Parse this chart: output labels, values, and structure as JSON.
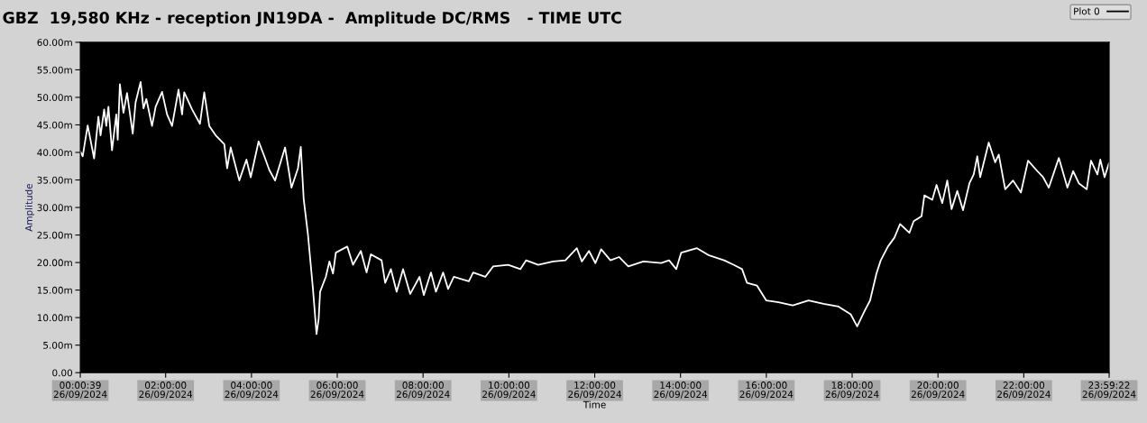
{
  "chart_data": {
    "type": "line",
    "title": "GBZ  19,580 KHz - reception JN19DA -  Amplitude DC/RMS   - TIME UTC",
    "xlabel": "Time",
    "ylabel": "Amplitude",
    "legend": "top right",
    "grid": false,
    "marker": "none",
    "line_style": "solid",
    "xlim": [
      "2024-09-26T00:00:39",
      "2024-09-26T23:59:22"
    ],
    "ylim": [
      0,
      60
    ],
    "xticks": [
      {
        "value": "2024-09-26T00:00:39",
        "label": "00:00:39\n26/09/2024"
      },
      {
        "value": "2024-09-26T02:00",
        "label": "02:00:00\n26/09/2024"
      },
      {
        "value": "2024-09-26T04:00",
        "label": "04:00:00\n26/09/2024"
      },
      {
        "value": "2024-09-26T06:00",
        "label": "06:00:00\n26/09/2024"
      },
      {
        "value": "2024-09-26T08:00",
        "label": "08:00:00\n26/09/2024"
      },
      {
        "value": "2024-09-26T10:00",
        "label": "10:00:00\n26/09/2024"
      },
      {
        "value": "2024-09-26T12:00",
        "label": "12:00:00\n26/09/2024"
      },
      {
        "value": "2024-09-26T14:00",
        "label": "14:00:00\n26/09/2024"
      },
      {
        "value": "2024-09-26T16:00",
        "label": "16:00:00\n26/09/2024"
      },
      {
        "value": "2024-09-26T18:00",
        "label": "18:00:00\n26/09/2024"
      },
      {
        "value": "2024-09-26T20:00",
        "label": "20:00:00\n26/09/2024"
      },
      {
        "value": "2024-09-26T22:00",
        "label": "22:00:00\n26/09/2024"
      },
      {
        "value": "2024-09-26T23:59:22",
        "label": "23:59:22\n26/09/2024"
      }
    ],
    "yticks": [
      {
        "value": 0,
        "label": "0.00"
      },
      {
        "value": 5,
        "label": "5.00m"
      },
      {
        "value": 10,
        "label": "10.00m"
      },
      {
        "value": 15,
        "label": "15.00m"
      },
      {
        "value": 20,
        "label": "20.00m"
      },
      {
        "value": 25,
        "label": "25.00m"
      },
      {
        "value": 30,
        "label": "30.00m"
      },
      {
        "value": 35,
        "label": "35.00m"
      },
      {
        "value": 40,
        "label": "40.00m"
      },
      {
        "value": 45,
        "label": "45.00m"
      },
      {
        "value": 50,
        "label": "50.00m"
      },
      {
        "value": 55,
        "label": "55.00m"
      },
      {
        "value": 60,
        "label": "60.00m"
      }
    ],
    "series": [
      {
        "name": "Plot 0",
        "color": "#ffffff",
        "x": [
          "2024-09-26T00:01",
          "2024-09-26T00:04",
          "2024-09-26T00:11",
          "2024-09-26T00:20",
          "2024-09-26T00:26",
          "2024-09-26T00:29",
          "2024-09-26T00:34",
          "2024-09-26T00:37",
          "2024-09-26T00:40",
          "2024-09-26T00:45",
          "2024-09-26T00:51",
          "2024-09-26T00:53",
          "2024-09-26T00:56",
          "2024-09-26T01:01",
          "2024-09-26T01:06",
          "2024-09-26T01:14",
          "2024-09-26T01:18",
          "2024-09-26T01:25",
          "2024-09-26T01:29",
          "2024-09-26T01:33",
          "2024-09-26T01:41",
          "2024-09-26T01:46",
          "2024-09-26T01:55",
          "2024-09-26T02:02",
          "2024-09-26T02:09",
          "2024-09-26T02:18",
          "2024-09-26T02:23",
          "2024-09-26T02:26",
          "2024-09-26T02:37",
          "2024-09-26T02:48",
          "2024-09-26T02:54",
          "2024-09-26T03:01",
          "2024-09-26T03:10",
          "2024-09-26T03:22",
          "2024-09-26T03:26",
          "2024-09-26T03:31",
          "2024-09-26T03:43",
          "2024-09-26T03:53",
          "2024-09-26T03:59",
          "2024-09-26T04:10",
          "2024-09-26T04:18",
          "2024-09-26T04:25",
          "2024-09-26T04:33",
          "2024-09-26T04:47",
          "2024-09-26T04:56",
          "2024-09-26T05:05",
          "2024-09-26T05:09",
          "2024-09-26T05:13",
          "2024-09-26T05:19",
          "2024-09-26T05:26",
          "2024-09-26T05:31",
          "2024-09-26T05:34",
          "2024-09-26T05:36",
          "2024-09-26T05:44",
          "2024-09-26T05:49",
          "2024-09-26T05:54",
          "2024-09-26T05:58",
          "2024-09-26T06:14",
          "2024-09-26T06:22",
          "2024-09-26T06:33",
          "2024-09-26T06:41",
          "2024-09-26T06:47",
          "2024-09-26T07:02",
          "2024-09-26T07:07",
          "2024-09-26T07:15",
          "2024-09-26T07:23",
          "2024-09-26T07:32",
          "2024-09-26T07:42",
          "2024-09-26T07:55",
          "2024-09-26T08:01",
          "2024-09-26T08:11",
          "2024-09-26T08:18",
          "2024-09-26T08:28",
          "2024-09-26T08:35",
          "2024-09-26T08:43",
          "2024-09-26T09:04",
          "2024-09-26T09:10",
          "2024-09-26T09:27",
          "2024-09-26T09:38",
          "2024-09-26T09:59",
          "2024-09-26T10:16",
          "2024-09-26T10:24",
          "2024-09-26T10:41",
          "2024-09-26T11:02",
          "2024-09-26T11:19",
          "2024-09-26T11:35",
          "2024-09-26T11:42",
          "2024-09-26T11:52",
          "2024-09-26T12:01",
          "2024-09-26T12:09",
          "2024-09-26T12:22",
          "2024-09-26T12:34",
          "2024-09-26T12:47",
          "2024-09-26T13:08",
          "2024-09-26T13:33",
          "2024-09-26T13:44",
          "2024-09-26T13:54",
          "2024-09-26T14:01",
          "2024-09-26T14:23",
          "2024-09-26T14:40",
          "2024-09-26T15:01",
          "2024-09-26T15:14",
          "2024-09-26T15:26",
          "2024-09-26T15:33",
          "2024-09-26T15:47",
          "2024-09-26T16:00",
          "2024-09-26T16:17",
          "2024-09-26T16:37",
          "2024-09-26T16:59",
          "2024-09-26T17:20",
          "2024-09-26T17:41",
          "2024-09-26T17:58",
          "2024-09-26T18:07",
          "2024-09-26T18:17",
          "2024-09-26T18:25",
          "2024-09-26T18:34",
          "2024-09-26T18:40",
          "2024-09-26T18:50",
          "2024-09-26T18:59",
          "2024-09-26T19:07",
          "2024-09-26T19:20",
          "2024-09-26T19:26",
          "2024-09-26T19:37",
          "2024-09-26T19:41",
          "2024-09-26T19:52",
          "2024-09-26T19:58",
          "2024-09-26T20:06",
          "2024-09-26T20:13",
          "2024-09-26T20:19",
          "2024-09-26T20:27",
          "2024-09-26T20:35",
          "2024-09-26T20:44",
          "2024-09-26T20:50",
          "2024-09-26T20:55",
          "2024-09-26T20:59",
          "2024-09-26T21:11",
          "2024-09-26T21:20",
          "2024-09-26T21:25",
          "2024-09-26T21:34",
          "2024-09-26T21:45",
          "2024-09-26T21:56",
          "2024-09-26T22:06",
          "2024-09-26T22:19",
          "2024-09-26T22:27",
          "2024-09-26T22:35",
          "2024-09-26T22:49",
          "2024-09-26T23:01",
          "2024-09-26T23:09",
          "2024-09-26T23:17",
          "2024-09-26T23:28",
          "2024-09-26T23:34",
          "2024-09-26T23:43",
          "2024-09-26T23:47",
          "2024-09-26T23:53",
          "2024-09-26T23:59"
        ],
        "values": [
          40.1,
          39.3,
          44.9,
          38.9,
          46.5,
          43.1,
          47.8,
          44.8,
          48.3,
          40.4,
          46.9,
          42.3,
          52.4,
          47.2,
          50.8,
          43.4,
          49.1,
          52.8,
          48.0,
          49.7,
          44.8,
          48.3,
          51.0,
          46.9,
          44.8,
          51.4,
          46.9,
          50.9,
          47.8,
          45.2,
          50.9,
          44.8,
          43.1,
          41.5,
          37.1,
          40.9,
          34.9,
          38.7,
          35.5,
          42.0,
          39.3,
          36.8,
          34.9,
          40.9,
          33.6,
          37.1,
          41.0,
          31.6,
          25.1,
          15.2,
          7.0,
          9.8,
          14.7,
          17.4,
          20.2,
          18.0,
          21.8,
          22.9,
          19.6,
          22.1,
          18.2,
          21.5,
          20.4,
          16.3,
          18.8,
          14.7,
          18.8,
          14.3,
          17.4,
          14.1,
          18.2,
          14.7,
          18.2,
          15.2,
          17.4,
          16.6,
          18.2,
          17.4,
          19.3,
          19.6,
          18.8,
          20.4,
          19.6,
          20.2,
          20.4,
          22.6,
          20.2,
          22.1,
          19.9,
          22.4,
          20.4,
          21.0,
          19.3,
          20.2,
          19.9,
          20.4,
          18.8,
          21.8,
          22.6,
          21.3,
          20.4,
          19.6,
          18.8,
          16.3,
          15.8,
          13.1,
          12.8,
          12.2,
          13.1,
          12.5,
          12.0,
          10.6,
          8.4,
          11.1,
          13.1,
          18.0,
          20.4,
          22.9,
          24.5,
          27.0,
          25.4,
          27.5,
          28.4,
          32.2,
          31.4,
          34.1,
          30.8,
          34.9,
          29.7,
          33.0,
          29.5,
          34.4,
          36.0,
          39.3,
          35.5,
          41.8,
          38.2,
          39.6,
          33.3,
          34.9,
          32.7,
          38.5,
          36.6,
          35.5,
          33.6,
          39.0,
          33.6,
          36.6,
          34.4,
          33.3,
          38.5,
          36.0,
          38.7,
          35.5,
          38.0
        ]
      }
    ]
  }
}
